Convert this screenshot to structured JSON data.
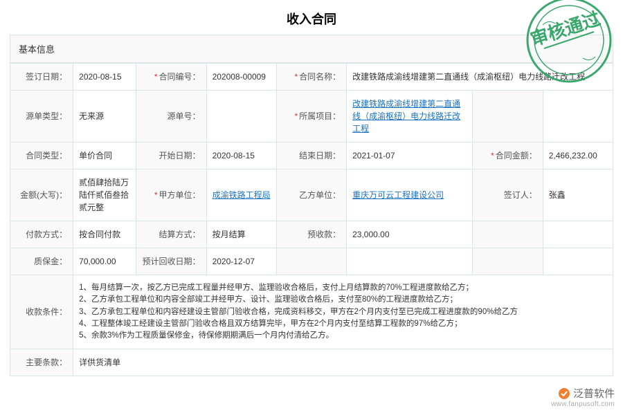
{
  "title": "收入合同",
  "section_basic": "基本信息",
  "stamp_text": "审核通过",
  "stamp_color": "#3aa76d",
  "link_color": "#1a72c4",
  "border_color": "#d8e6e8",
  "label_bg": "#faf9f9",
  "required_color": "#e03030",
  "labels": {
    "sign_date": "签订日期：",
    "contract_no": "合同编号：",
    "contract_name": "合同名称：",
    "source_type": "源单类型：",
    "source_no": "源单号：",
    "project": "所属项目：",
    "contract_type": "合同类型：",
    "start_date": "开始日期：",
    "end_date": "结束日期：",
    "amount": "合同金额：",
    "amount_cn": "金额(大写)：",
    "party_a": "甲方单位：",
    "party_b": "乙方单位：",
    "signer": "签订人：",
    "pay_method": "付款方式：",
    "settle_method": "结算方式：",
    "advance": "预收款：",
    "retention": "质保金：",
    "est_return_date": "预计回收日期：",
    "pay_terms": "收款条件：",
    "main_terms": "主要条款："
  },
  "values": {
    "sign_date": "2020-08-15",
    "contract_no": "202008-00009",
    "contract_name": "改建铁路成渝线增建第二直通线（成渝枢纽）电力线路迁改工程",
    "source_type": "无来源",
    "source_no": "",
    "project": "改建铁路成渝线增建第二直通线（成渝枢纽）电力线路迁改工程",
    "contract_type": "单价合同",
    "start_date": "2020-08-15",
    "end_date": "2021-01-07",
    "amount": "2,466,232.00",
    "amount_cn": "贰佰肆拾陆万陆仟贰佰叁拾贰元整",
    "party_a": "成渝铁路工程局",
    "party_b": "重庆万可云工程建设公司",
    "signer": "张鑫",
    "pay_method": "按合同付款",
    "settle_method": "按月结算",
    "advance": "23,000.00",
    "retention": "70,000.00",
    "est_return_date": "2020-12-07",
    "main_terms": "详供货清单"
  },
  "pay_terms_lines": [
    "1、每月结算一次，按乙方已完成工程量并经甲方、监理验收合格后，支付上月结算款的70%工程进度款给乙方；",
    "2、乙方承包工程单位和内容全部竣工并经甲方、设计、监理验收合格后，支付至80%的工程进度款给乙方；",
    "3、乙方承包工程单位和内容经建设主管部门验收合格，完成资料移交，甲方在2个月内支付至已完成工程进度款的90%给乙方",
    "4、工程整体竣工经建设主管部门验收合格且双方结算完毕，甲方在2个月内支付至结算工程款的97%给乙方；",
    "5、余款3%作为工程质量保修金，待保修期期满后一个月内付清给乙方。"
  ],
  "watermark": {
    "brand": "泛普软件",
    "url": "www.fanpusoft.com"
  }
}
